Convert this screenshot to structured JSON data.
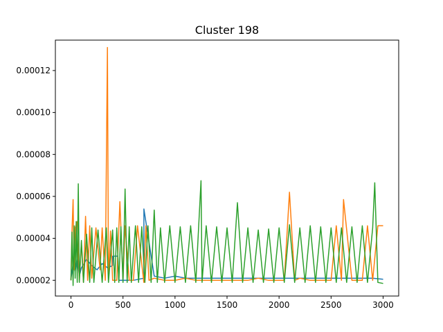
{
  "chart_data": {
    "type": "line",
    "title": "Cluster 198",
    "xlabel": "",
    "ylabel": "",
    "xlim": [
      -150,
      3150
    ],
    "ylim": [
      1.25e-05,
      0.0001345
    ],
    "grid": false,
    "legend": "none",
    "xticks": [
      0,
      500,
      1000,
      1500,
      2000,
      2500,
      3000
    ],
    "xtick_labels": [
      "0",
      "500",
      "1000",
      "1500",
      "2000",
      "2500",
      "3000"
    ],
    "yticks": [
      2e-05,
      4e-05,
      6e-05,
      8e-05,
      0.0001,
      0.00012
    ],
    "ytick_labels": [
      "0.00002",
      "0.00004",
      "0.00006",
      "0.00008",
      "0.00010",
      "0.00012"
    ],
    "series": [
      {
        "color": "#1f77b4",
        "x": [
          0,
          20,
          40,
          60,
          80,
          100,
          150,
          200,
          250,
          300,
          350,
          400,
          401,
          450,
          460,
          500,
          600,
          700,
          701,
          800,
          900,
          1000,
          1100,
          1200,
          1300,
          1400,
          1500,
          1600,
          1700,
          1800,
          1900,
          2000,
          2100,
          2200,
          2300,
          2400,
          2500,
          2600,
          2700,
          2800,
          2900,
          3000
        ],
        "y": [
          2.05e-05,
          2.8e-05,
          2.4e-05,
          3.1e-05,
          2.2e-05,
          2.6e-05,
          3e-05,
          2.7e-05,
          2.5e-05,
          2.8e-05,
          2.6e-05,
          2.7e-05,
          3.15e-05,
          3.15e-05,
          2e-05,
          2e-05,
          2e-05,
          2.1e-05,
          5.4e-05,
          2.2e-05,
          2.1e-05,
          2.2e-05,
          2.1e-05,
          2.1e-05,
          2.1e-05,
          2.1e-05,
          2.1e-05,
          2.1e-05,
          2.1e-05,
          2.1e-05,
          2.1e-05,
          2.1e-05,
          2.1e-05,
          2.1e-05,
          2.1e-05,
          2.1e-05,
          2.1e-05,
          2.1e-05,
          2.1e-05,
          2.1e-05,
          2.1e-05,
          2.05e-05
        ]
      },
      {
        "color": "#ff7f0e",
        "x": [
          0,
          10,
          20,
          30,
          40,
          60,
          80,
          100,
          120,
          140,
          160,
          180,
          200,
          240,
          280,
          300,
          330,
          350,
          360,
          380,
          400,
          440,
          470,
          500,
          520,
          560,
          600,
          640,
          700,
          720,
          750,
          800,
          900,
          1000,
          1100,
          1200,
          1300,
          1400,
          1500,
          1600,
          1700,
          1800,
          1900,
          2000,
          2050,
          2100,
          2150,
          2200,
          2300,
          2400,
          2500,
          2550,
          2600,
          2620,
          2700,
          2800,
          2850,
          2900,
          2950,
          3000
        ],
        "y": [
          2e-05,
          4.35e-05,
          5.85e-05,
          2.5e-05,
          4.5e-05,
          4.8e-05,
          2e-05,
          3.8e-05,
          1.9e-05,
          5.05e-05,
          2e-05,
          4.6e-05,
          2.1e-05,
          4.5e-05,
          2.5e-05,
          4.5e-05,
          2e-05,
          0.000131,
          2e-05,
          4.35e-05,
          2e-05,
          2e-05,
          5.75e-05,
          2e-05,
          4.6e-05,
          2e-05,
          2e-05,
          4.6e-05,
          1.9e-05,
          4.6e-05,
          2e-05,
          2.1e-05,
          2e-05,
          2e-05,
          2.1e-05,
          2e-05,
          2e-05,
          2e-05,
          2e-05,
          2e-05,
          2e-05,
          2.1e-05,
          2e-05,
          2e-05,
          2e-05,
          6.2e-05,
          2e-05,
          2.1e-05,
          2e-05,
          2e-05,
          2e-05,
          4.6e-05,
          2e-05,
          5.85e-05,
          2e-05,
          2e-05,
          4.6e-05,
          2e-05,
          4.6e-05,
          4.6e-05
        ]
      },
      {
        "color": "#2ca02c",
        "x": [
          0,
          10,
          20,
          30,
          40,
          50,
          60,
          70,
          80,
          100,
          120,
          150,
          180,
          200,
          220,
          260,
          300,
          340,
          360,
          400,
          420,
          440,
          460,
          480,
          500,
          520,
          540,
          560,
          580,
          620,
          650,
          680,
          710,
          740,
          770,
          800,
          830,
          860,
          900,
          950,
          1000,
          1050,
          1100,
          1150,
          1200,
          1250,
          1260,
          1300,
          1350,
          1400,
          1450,
          1500,
          1550,
          1600,
          1650,
          1700,
          1750,
          1800,
          1850,
          1900,
          1950,
          2000,
          2050,
          2100,
          2150,
          2200,
          2250,
          2300,
          2350,
          2400,
          2450,
          2500,
          2550,
          2600,
          2650,
          2700,
          2750,
          2800,
          2850,
          2900,
          2920,
          2950,
          3000
        ],
        "y": [
          2e-05,
          4.3e-05,
          1.75e-05,
          4.6e-05,
          2.1e-05,
          4.8e-05,
          1.9e-05,
          6.6e-05,
          1.9e-05,
          3.9e-05,
          1.9e-05,
          4.2e-05,
          1.9e-05,
          4.5e-05,
          1.9e-05,
          4.4e-05,
          1.9e-05,
          4.5e-05,
          1.9e-05,
          4.4e-05,
          1.9e-05,
          4.5e-05,
          1.9e-05,
          4.55e-05,
          1.9e-05,
          6.35e-05,
          1.9e-05,
          4.55e-05,
          1.9e-05,
          4.6e-05,
          1.9e-05,
          4.55e-05,
          1.9e-05,
          4.6e-05,
          1.9e-05,
          5.35e-05,
          1.9e-05,
          4.5e-05,
          1.9e-05,
          4.6e-05,
          1.9e-05,
          4.55e-05,
          1.9e-05,
          4.6e-05,
          1.9e-05,
          6.75e-05,
          1.9e-05,
          4.6e-05,
          1.9e-05,
          4.55e-05,
          1.9e-05,
          4.5e-05,
          1.9e-05,
          5.7e-05,
          1.9e-05,
          4.5e-05,
          1.9e-05,
          4.4e-05,
          1.9e-05,
          4.45e-05,
          1.9e-05,
          4.5e-05,
          1.9e-05,
          4.65e-05,
          1.9e-05,
          4.5e-05,
          1.9e-05,
          4.6e-05,
          1.9e-05,
          4.55e-05,
          1.9e-05,
          4.5e-05,
          1.9e-05,
          4.5e-05,
          1.9e-05,
          4.55e-05,
          1.9e-05,
          4.6e-05,
          1.9e-05,
          4.5e-05,
          6.65e-05,
          1.9e-05,
          1.85e-05
        ]
      }
    ]
  }
}
